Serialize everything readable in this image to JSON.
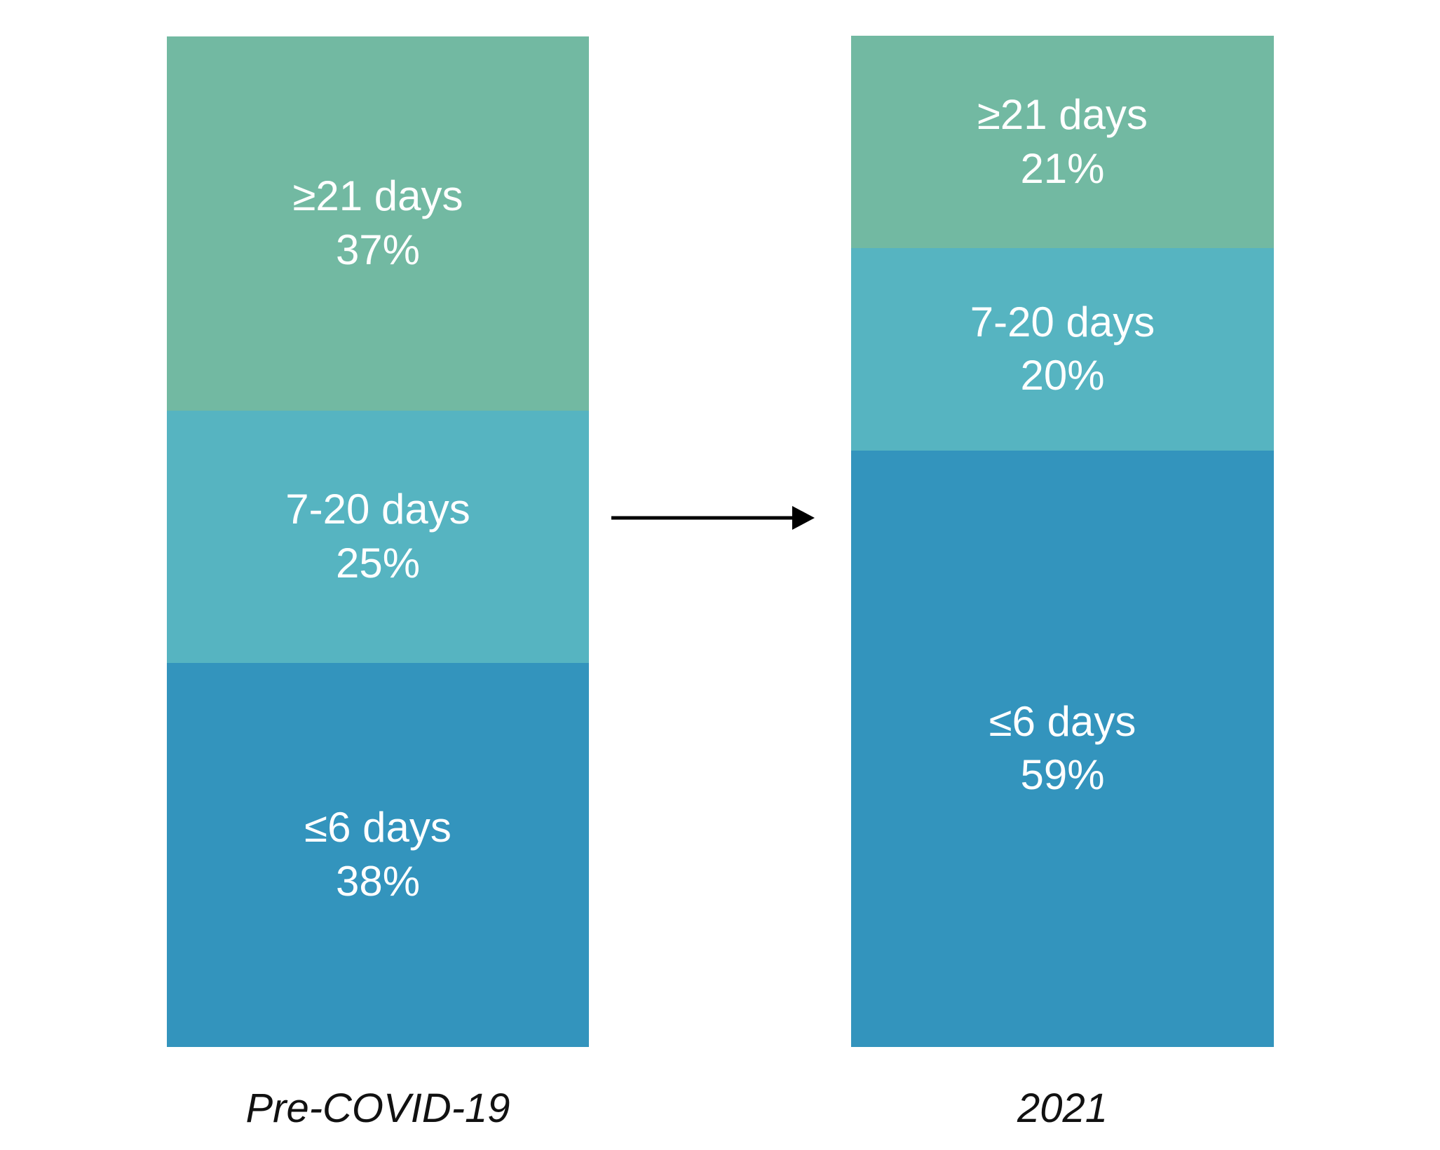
{
  "chart_data": {
    "type": "bar",
    "subtype": "100%-stacked-columns",
    "orientation": "vertical",
    "categories": [
      "Pre-COVID-19",
      "2021"
    ],
    "series": [
      {
        "name": "≥21 days",
        "values": [
          37,
          21
        ],
        "color": "#72b9a2"
      },
      {
        "name": "7-20 days",
        "values": [
          25,
          20
        ],
        "color": "#56b4c1"
      },
      {
        "name": "≤6 days",
        "values": [
          38,
          59
        ],
        "color": "#3394bd"
      }
    ],
    "value_suffix": "%",
    "segment_labels": [
      [
        "≥21 days 37%",
        "7-20 days 25%",
        "≤6 days 38%"
      ],
      [
        "≥21 days 21%",
        "7-20 days 20%",
        "≤6 days 59%"
      ]
    ],
    "annotation_arrow": {
      "from": "Pre-COVID-19",
      "to": "2021",
      "color": "#000000"
    },
    "layout": {
      "grid": false,
      "legend": "none",
      "value_labels": "inside-segments",
      "segment_text_color": "#ffffff",
      "category_label_style": "italic",
      "category_label_color": "#111111",
      "background": "#ffffff",
      "ylim": [
        0,
        100
      ]
    }
  }
}
